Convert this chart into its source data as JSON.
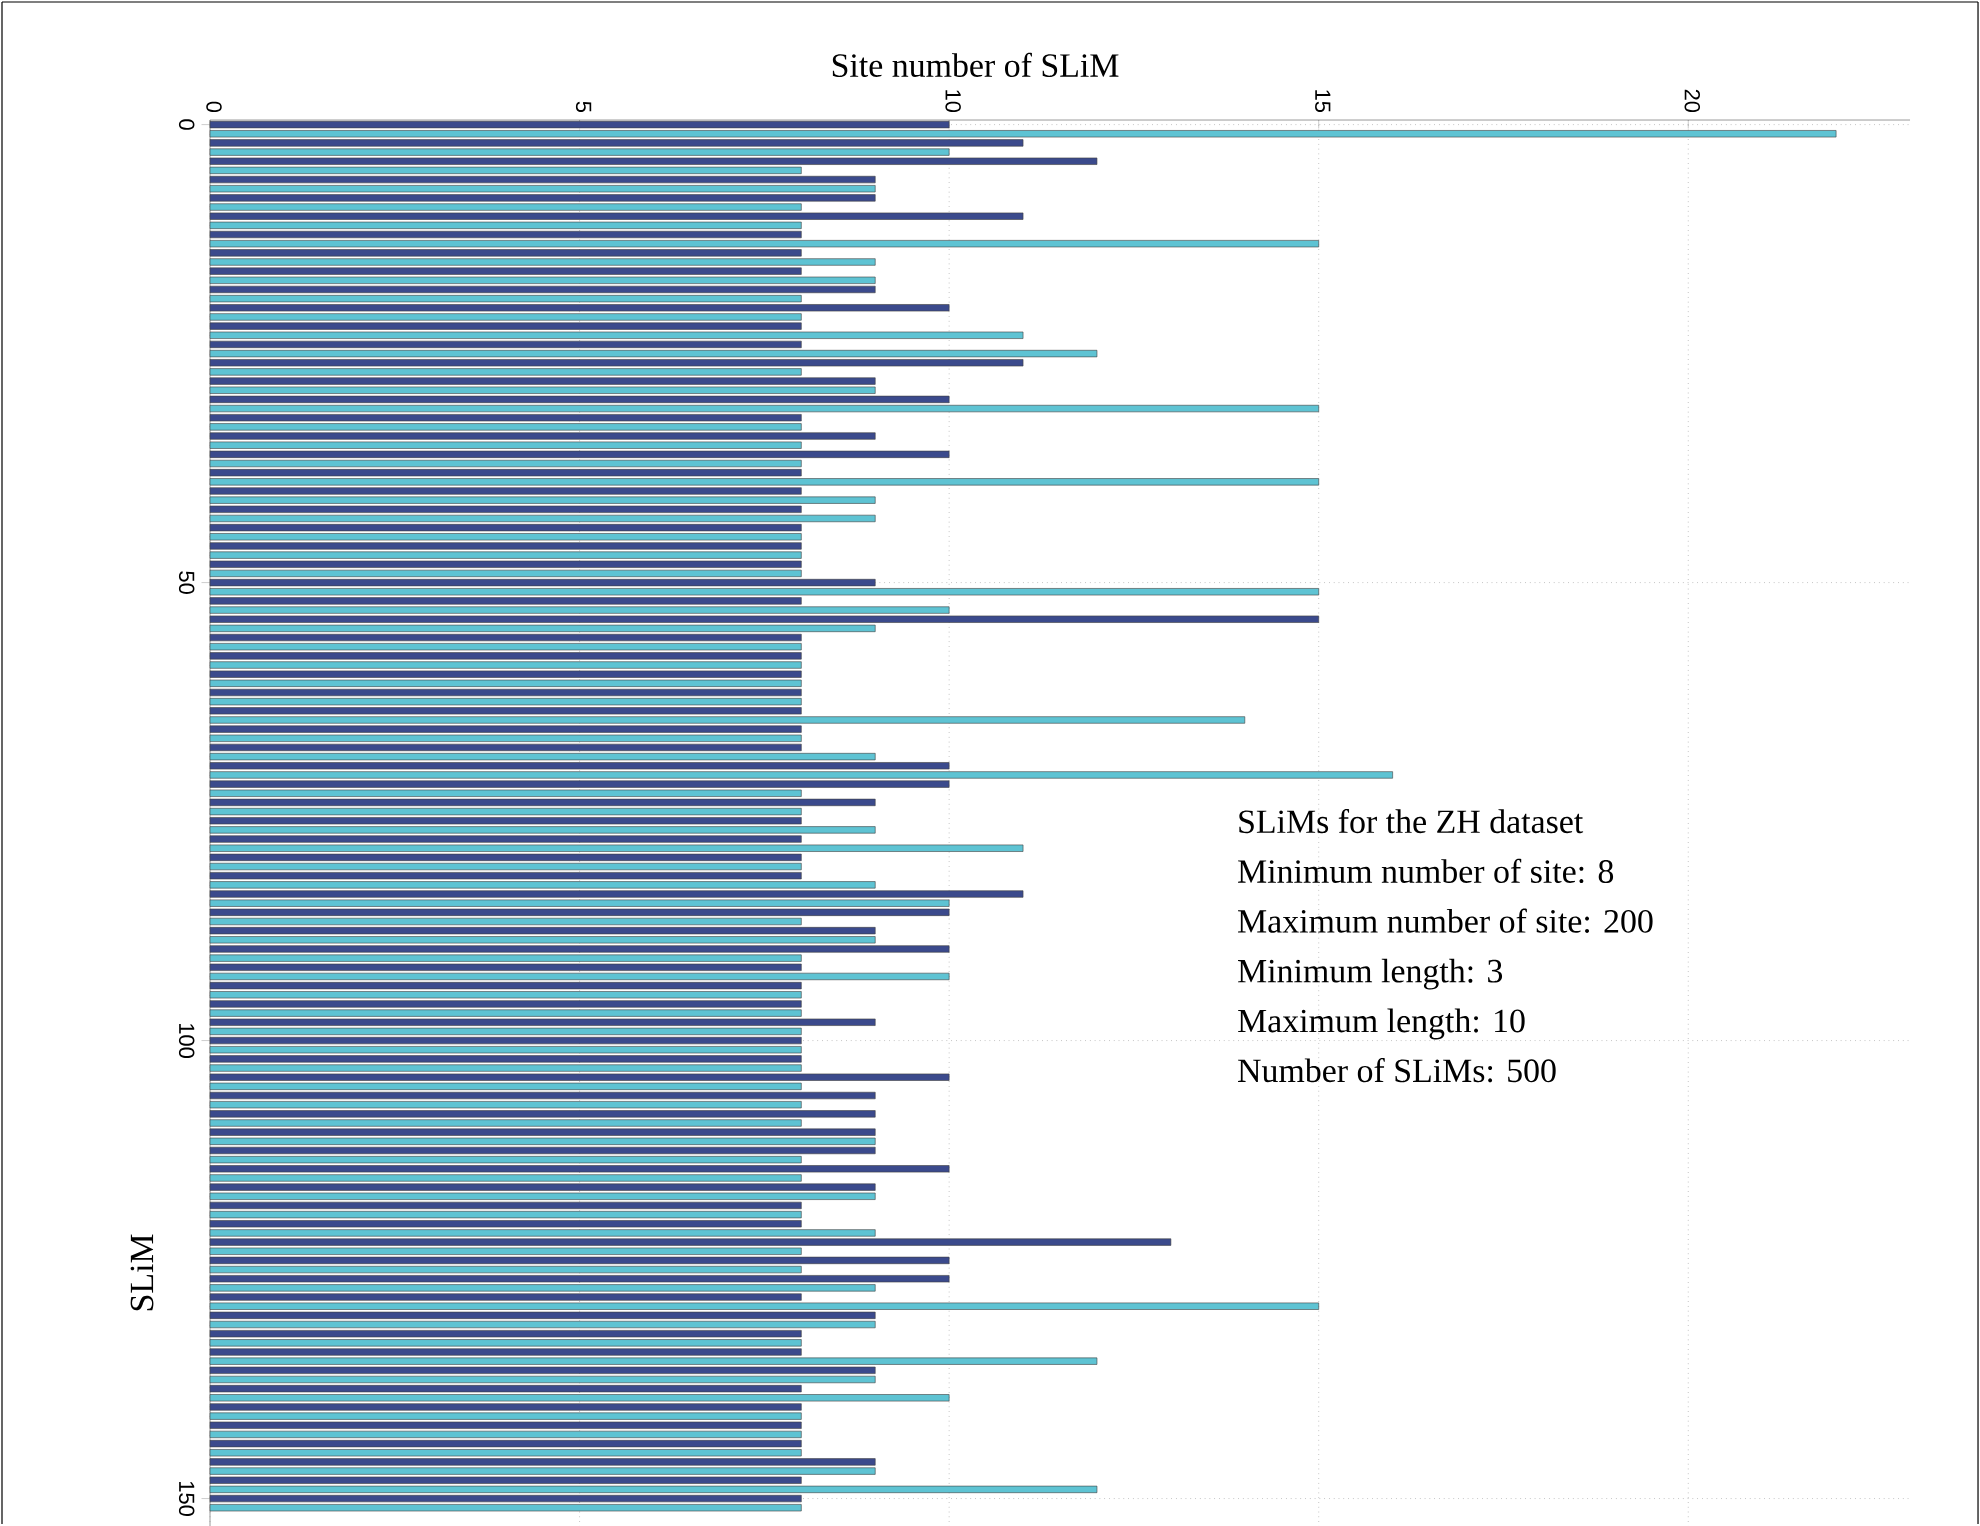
{
  "chart_data": {
    "type": "bar",
    "orientation": "horizontal",
    "xlabel": "Site number of SLiM",
    "ylabel": "SLiM",
    "x": [
      0,
      1,
      2,
      3,
      4,
      5,
      6,
      7,
      8,
      9,
      10,
      11,
      12,
      13,
      14,
      15,
      16,
      17,
      18,
      19,
      20,
      21,
      22,
      23,
      24,
      25,
      26,
      27,
      28,
      29,
      30,
      31,
      32,
      33,
      34,
      35,
      36,
      37,
      38,
      39,
      40,
      41,
      42,
      43,
      44,
      45,
      46,
      47,
      48,
      49,
      50,
      51,
      52,
      53,
      54,
      55,
      56,
      57,
      58,
      59,
      60,
      61,
      62,
      63,
      64,
      65,
      66,
      67,
      68,
      69,
      70,
      71,
      72,
      73,
      74,
      75,
      76,
      77,
      78,
      79,
      80,
      81,
      82,
      83,
      84,
      85,
      86,
      87,
      88,
      89,
      90,
      91,
      92,
      93,
      94,
      95,
      96,
      97,
      98,
      99,
      100,
      101,
      102,
      103,
      104,
      105,
      106,
      107,
      108,
      109,
      110,
      111,
      112,
      113,
      114,
      115,
      116,
      117,
      118,
      119,
      120,
      121,
      122,
      123,
      124,
      125,
      126,
      127,
      128,
      129,
      130,
      131,
      132,
      133,
      134,
      135,
      136,
      137,
      138,
      139,
      140,
      141,
      142,
      143,
      144,
      145,
      146,
      147,
      148,
      149,
      150,
      151
    ],
    "values": [
      10,
      22,
      11,
      10,
      12,
      8,
      9,
      9,
      9,
      8,
      11,
      8,
      8,
      15,
      8,
      9,
      8,
      9,
      9,
      8,
      10,
      8,
      8,
      11,
      8,
      12,
      11,
      8,
      9,
      9,
      10,
      15,
      8,
      8,
      9,
      8,
      10,
      8,
      8,
      15,
      8,
      9,
      8,
      9,
      8,
      8,
      8,
      8,
      8,
      8,
      9,
      15,
      8,
      10,
      15,
      9,
      8,
      8,
      8,
      8,
      8,
      8,
      8,
      8,
      8,
      14,
      8,
      8,
      8,
      9,
      10,
      16,
      10,
      8,
      9,
      8,
      8,
      9,
      8,
      11,
      8,
      8,
      8,
      9,
      11,
      10,
      10,
      8,
      9,
      9,
      10,
      8,
      8,
      10,
      8,
      8,
      8,
      8,
      9,
      8,
      8,
      8,
      8,
      8,
      10,
      8,
      9,
      8,
      9,
      8,
      9,
      9,
      9,
      8,
      10,
      8,
      9,
      9,
      8,
      8,
      8,
      9,
      13,
      8,
      10,
      8,
      10,
      9,
      8,
      15,
      9,
      9,
      8,
      8,
      8,
      12,
      9,
      9,
      8,
      10,
      8,
      8,
      8,
      8,
      8,
      8,
      9,
      9,
      8,
      12,
      8,
      8
    ],
    "colors": [
      "#3b4a8c",
      "#5ec3d3",
      "#3b4a8c",
      "#5ec3d3",
      "#3b4a8c",
      "#5ec3d3",
      "#3b4a8c",
      "#5ec3d3",
      "#3b4a8c",
      "#5ec3d3",
      "#3b4a8c",
      "#5ec3d3",
      "#3b4a8c",
      "#5ec3d3",
      "#3b4a8c",
      "#5ec3d3",
      "#3b4a8c",
      "#5ec3d3",
      "#3b4a8c",
      "#5ec3d3",
      "#3b4a8c",
      "#5ec3d3",
      "#3b4a8c",
      "#5ec3d3",
      "#3b4a8c",
      "#5ec3d3",
      "#3b4a8c",
      "#5ec3d3",
      "#3b4a8c",
      "#5ec3d3",
      "#3b4a8c",
      "#5ec3d3",
      "#3b4a8c",
      "#5ec3d3",
      "#3b4a8c",
      "#5ec3d3",
      "#3b4a8c",
      "#5ec3d3",
      "#3b4a8c",
      "#5ec3d3",
      "#3b4a8c",
      "#5ec3d3",
      "#3b4a8c",
      "#5ec3d3",
      "#3b4a8c",
      "#5ec3d3",
      "#3b4a8c",
      "#5ec3d3",
      "#3b4a8c",
      "#5ec3d3",
      "#3b4a8c",
      "#5ec3d3",
      "#3b4a8c",
      "#5ec3d3",
      "#3b4a8c",
      "#5ec3d3",
      "#3b4a8c",
      "#5ec3d3",
      "#3b4a8c",
      "#5ec3d3",
      "#3b4a8c",
      "#5ec3d3",
      "#3b4a8c",
      "#5ec3d3",
      "#3b4a8c",
      "#5ec3d3",
      "#3b4a8c",
      "#5ec3d3",
      "#3b4a8c",
      "#5ec3d3",
      "#3b4a8c",
      "#5ec3d3",
      "#3b4a8c",
      "#5ec3d3",
      "#3b4a8c",
      "#5ec3d3",
      "#3b4a8c",
      "#5ec3d3",
      "#3b4a8c",
      "#5ec3d3",
      "#3b4a8c",
      "#5ec3d3",
      "#3b4a8c",
      "#5ec3d3",
      "#3b4a8c",
      "#5ec3d3",
      "#3b4a8c",
      "#5ec3d3",
      "#3b4a8c",
      "#5ec3d3",
      "#3b4a8c",
      "#5ec3d3",
      "#3b4a8c",
      "#5ec3d3",
      "#3b4a8c",
      "#5ec3d3",
      "#3b4a8c",
      "#5ec3d3",
      "#3b4a8c",
      "#5ec3d3",
      "#3b4a8c",
      "#5ec3d3",
      "#3b4a8c",
      "#5ec3d3",
      "#3b4a8c",
      "#5ec3d3",
      "#3b4a8c",
      "#5ec3d3",
      "#3b4a8c",
      "#5ec3d3",
      "#3b4a8c",
      "#5ec3d3",
      "#3b4a8c",
      "#5ec3d3",
      "#3b4a8c",
      "#5ec3d3",
      "#3b4a8c",
      "#5ec3d3",
      "#3b4a8c",
      "#5ec3d3",
      "#3b4a8c",
      "#5ec3d3",
      "#3b4a8c",
      "#5ec3d3",
      "#3b4a8c",
      "#5ec3d3",
      "#3b4a8c",
      "#5ec3d3",
      "#3b4a8c",
      "#5ec3d3",
      "#3b4a8c",
      "#5ec3d3",
      "#3b4a8c",
      "#5ec3d3",
      "#3b4a8c",
      "#5ec3d3",
      "#3b4a8c",
      "#5ec3d3",
      "#3b4a8c",
      "#5ec3d3",
      "#3b4a8c",
      "#5ec3d3",
      "#3b4a8c",
      "#5ec3d3",
      "#3b4a8c",
      "#5ec3d3",
      "#3b4a8c",
      "#5ec3d3",
      "#3b4a8c",
      "#5ec3d3",
      "#3b4a8c",
      "#5ec3d3"
    ],
    "xlim": [
      0,
      23
    ],
    "xticks": [
      0,
      5,
      10,
      15,
      20
    ],
    "ylim": [
      153,
      -0.5
    ],
    "yticks": [
      0,
      50,
      100,
      150
    ],
    "grid": true,
    "line_style": "dotted",
    "annotations": [
      "SLiMs for the ZH dataset",
      "Minimum number of site: 8",
      "Maximum number of site: 200",
      "Minimum length: 3",
      "Maximum length: 10",
      "Number of SLiMs: 500"
    ]
  }
}
